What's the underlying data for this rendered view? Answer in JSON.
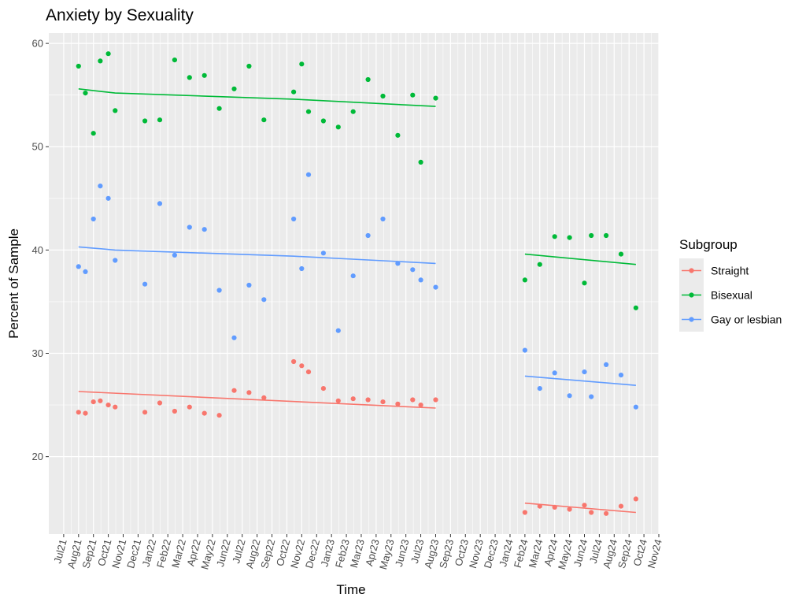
{
  "chart_data": {
    "type": "scatter",
    "title": "Anxiety by Sexuality",
    "xlabel": "Time",
    "ylabel": "Percent of Sample",
    "x_ticks": [
      "Jul21",
      "Aug21",
      "Sep21",
      "Oct21",
      "Nov21",
      "Dec21",
      "Jan22",
      "Feb22",
      "Mar22",
      "Apr22",
      "May22",
      "Jun22",
      "Jul22",
      "Aug22",
      "Sep22",
      "Oct22",
      "Nov22",
      "Dec22",
      "Jan23",
      "Feb23",
      "Mar23",
      "Apr23",
      "May23",
      "Jun23",
      "Jul23",
      "Aug23",
      "Sep23",
      "Oct23",
      "Nov23",
      "Dec23",
      "Jan24",
      "Feb24",
      "Mar24",
      "Apr24",
      "May24",
      "Jun24",
      "Jul24",
      "Aug24",
      "Sep24",
      "Oct24",
      "Nov24"
    ],
    "y_ticks": [
      20,
      30,
      40,
      50,
      60
    ],
    "xlim": [
      "Jun21",
      "Nov24"
    ],
    "ylim": [
      12.5,
      61
    ],
    "grid": true,
    "legend": {
      "title": "Subgroup",
      "position": "right"
    },
    "series": [
      {
        "name": "Straight",
        "color": "#F8766D",
        "points": [
          [
            "2021-08-01",
            24.3
          ],
          [
            "2021-08-15",
            24.2
          ],
          [
            "2021-09-01",
            25.3
          ],
          [
            "2021-09-15",
            25.4
          ],
          [
            "2021-10-01",
            25.0
          ],
          [
            "2021-10-15",
            24.8
          ],
          [
            "2021-12-15",
            24.3
          ],
          [
            "2022-01-15",
            25.2
          ],
          [
            "2022-02-15",
            24.4
          ],
          [
            "2022-03-15",
            24.8
          ],
          [
            "2022-04-15",
            24.2
          ],
          [
            "2022-05-15",
            24.0
          ],
          [
            "2022-06-15",
            26.4
          ],
          [
            "2022-07-15",
            26.2
          ],
          [
            "2022-08-15",
            25.7
          ],
          [
            "2022-10-15",
            29.2
          ],
          [
            "2022-11-01",
            28.8
          ],
          [
            "2022-11-15",
            28.2
          ],
          [
            "2022-12-15",
            26.6
          ],
          [
            "2023-01-15",
            25.4
          ],
          [
            "2023-02-15",
            25.6
          ],
          [
            "2023-03-15",
            25.5
          ],
          [
            "2023-04-15",
            25.3
          ],
          [
            "2023-05-15",
            25.1
          ],
          [
            "2023-06-15",
            25.5
          ],
          [
            "2023-07-01",
            25.0
          ],
          [
            "2023-08-01",
            25.5
          ],
          [
            "2024-02-01",
            14.6
          ],
          [
            "2024-03-01",
            15.2
          ],
          [
            "2024-04-01",
            15.1
          ],
          [
            "2024-05-01",
            14.9
          ],
          [
            "2024-06-01",
            15.3
          ],
          [
            "2024-06-15",
            14.6
          ],
          [
            "2024-07-15",
            14.5
          ],
          [
            "2024-08-15",
            15.2
          ],
          [
            "2024-09-15",
            15.9
          ]
        ],
        "trend": [
          [
            [
              "2021-08-01",
              26.3
            ],
            [
              "2023-08-01",
              24.7
            ]
          ],
          [
            [
              "2024-02-01",
              15.5
            ],
            [
              "2024-09-15",
              14.6
            ]
          ]
        ]
      },
      {
        "name": "Bisexual",
        "color": "#00BA38",
        "points": [
          [
            "2021-08-01",
            57.8
          ],
          [
            "2021-08-15",
            55.2
          ],
          [
            "2021-09-01",
            51.3
          ],
          [
            "2021-09-15",
            58.3
          ],
          [
            "2021-10-01",
            59.0
          ],
          [
            "2021-10-15",
            53.5
          ],
          [
            "2021-12-15",
            52.5
          ],
          [
            "2022-01-15",
            52.6
          ],
          [
            "2022-02-15",
            58.4
          ],
          [
            "2022-03-15",
            56.7
          ],
          [
            "2022-04-15",
            56.9
          ],
          [
            "2022-05-15",
            53.7
          ],
          [
            "2022-06-15",
            55.6
          ],
          [
            "2022-07-15",
            57.8
          ],
          [
            "2022-08-15",
            52.6
          ],
          [
            "2022-10-15",
            55.3
          ],
          [
            "2022-11-01",
            58.0
          ],
          [
            "2022-11-15",
            53.4
          ],
          [
            "2022-12-15",
            52.5
          ],
          [
            "2023-01-15",
            51.9
          ],
          [
            "2023-02-15",
            53.4
          ],
          [
            "2023-03-15",
            56.5
          ],
          [
            "2023-04-15",
            54.9
          ],
          [
            "2023-05-15",
            51.1
          ],
          [
            "2023-06-15",
            55.0
          ],
          [
            "2023-07-01",
            48.5
          ],
          [
            "2023-08-01",
            54.7
          ],
          [
            "2024-02-01",
            37.1
          ],
          [
            "2024-03-01",
            38.6
          ],
          [
            "2024-04-01",
            41.3
          ],
          [
            "2024-05-01",
            41.2
          ],
          [
            "2024-06-01",
            36.8
          ],
          [
            "2024-06-15",
            41.4
          ],
          [
            "2024-07-15",
            41.4
          ],
          [
            "2024-08-15",
            39.6
          ],
          [
            "2024-09-15",
            34.4
          ]
        ],
        "trend": [
          [
            [
              "2021-08-01",
              55.6
            ],
            [
              "2021-10-15",
              55.2
            ],
            [
              "2022-10-15",
              54.6
            ],
            [
              "2023-08-01",
              53.9
            ]
          ],
          [
            [
              "2024-02-01",
              39.6
            ],
            [
              "2024-09-15",
              38.6
            ]
          ]
        ]
      },
      {
        "name": "Gay or lesbian",
        "color": "#619CFF",
        "points": [
          [
            "2021-08-01",
            38.4
          ],
          [
            "2021-08-15",
            37.9
          ],
          [
            "2021-09-01",
            43.0
          ],
          [
            "2021-09-15",
            46.2
          ],
          [
            "2021-10-01",
            45.0
          ],
          [
            "2021-10-15",
            39.0
          ],
          [
            "2021-12-15",
            36.7
          ],
          [
            "2022-01-15",
            44.5
          ],
          [
            "2022-02-15",
            39.5
          ],
          [
            "2022-03-15",
            42.2
          ],
          [
            "2022-04-15",
            42.0
          ],
          [
            "2022-05-15",
            36.1
          ],
          [
            "2022-06-15",
            31.5
          ],
          [
            "2022-07-15",
            36.6
          ],
          [
            "2022-08-15",
            35.2
          ],
          [
            "2022-10-15",
            43.0
          ],
          [
            "2022-11-01",
            38.2
          ],
          [
            "2022-11-15",
            47.3
          ],
          [
            "2022-12-15",
            39.7
          ],
          [
            "2023-01-15",
            32.2
          ],
          [
            "2023-02-15",
            37.5
          ],
          [
            "2023-03-15",
            41.4
          ],
          [
            "2023-04-15",
            43.0
          ],
          [
            "2023-05-15",
            38.7
          ],
          [
            "2023-06-15",
            38.1
          ],
          [
            "2023-07-01",
            37.1
          ],
          [
            "2023-08-01",
            36.4
          ],
          [
            "2024-02-01",
            30.3
          ],
          [
            "2024-03-01",
            26.6
          ],
          [
            "2024-04-01",
            28.1
          ],
          [
            "2024-05-01",
            25.9
          ],
          [
            "2024-06-01",
            28.2
          ],
          [
            "2024-06-15",
            25.8
          ],
          [
            "2024-07-15",
            28.9
          ],
          [
            "2024-08-15",
            27.9
          ],
          [
            "2024-09-15",
            24.8
          ]
        ],
        "trend": [
          [
            [
              "2021-08-01",
              40.3
            ],
            [
              "2021-10-15",
              40.0
            ],
            [
              "2022-10-15",
              39.4
            ],
            [
              "2023-08-01",
              38.7
            ]
          ],
          [
            [
              "2024-02-01",
              27.8
            ],
            [
              "2024-09-15",
              26.9
            ]
          ]
        ]
      }
    ]
  }
}
